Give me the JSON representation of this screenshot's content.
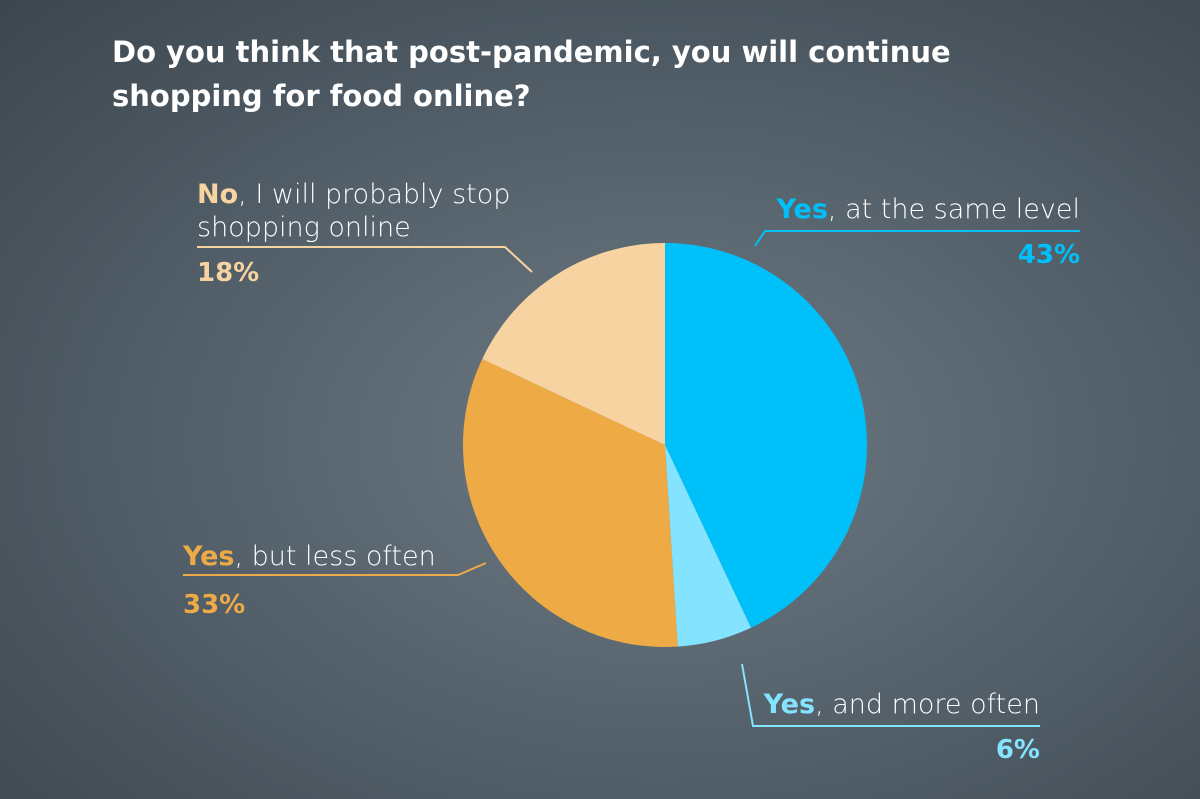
{
  "chart_data": {
    "type": "pie",
    "title": "Do you think that post-pandemic, you will continue shopping for food online?",
    "categories": [
      "Yes, at the same level",
      "Yes, and more often",
      "Yes, but less often",
      "No, I will probably stop shopping online"
    ],
    "values": [
      43,
      6,
      33,
      18
    ],
    "value_labels": [
      "43%",
      "6%",
      "33%",
      "18%"
    ],
    "colors": [
      "#00c0fa",
      "#84e3ff",
      "#eeab45",
      "#f6d3a0"
    ]
  }
}
